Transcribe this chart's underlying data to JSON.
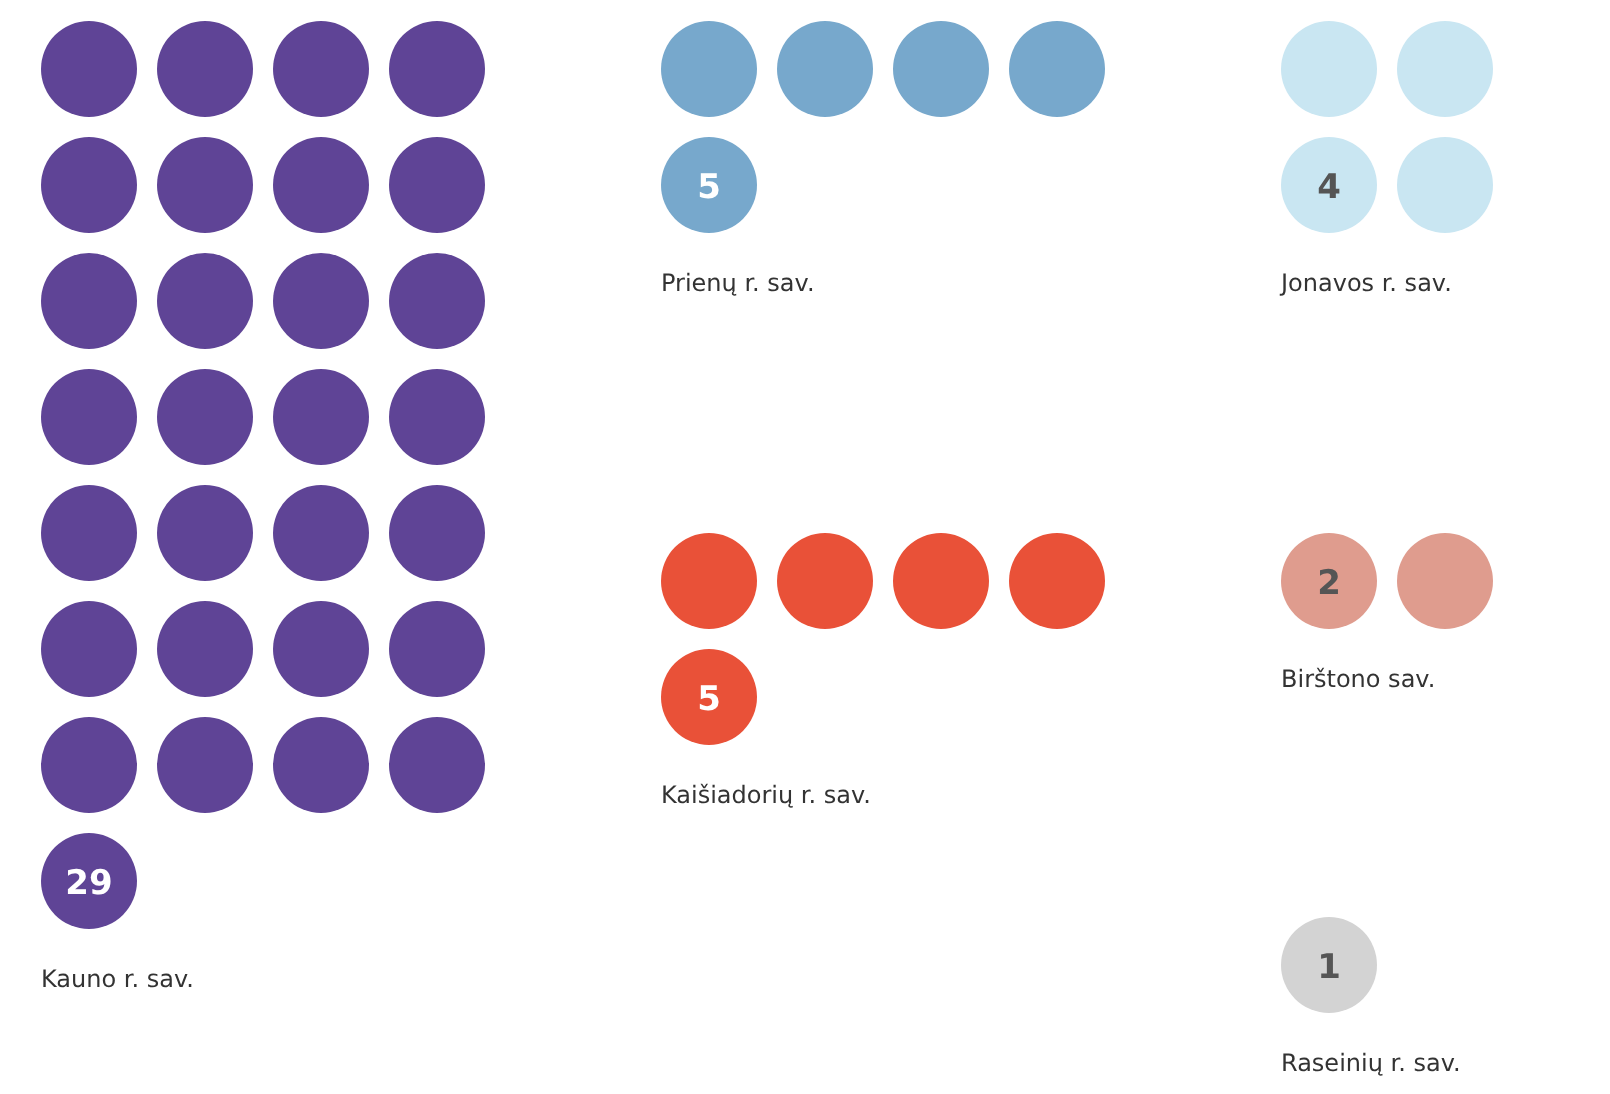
{
  "chart_data": {
    "type": "other",
    "categories": [
      "Kauno r. sav.",
      "Prienų r. sav.",
      "Jonavos r. sav.",
      "Kaišiadorių r. sav.",
      "Birštono sav.",
      "Raseinių r. sav."
    ],
    "values": [
      29,
      5,
      4,
      5,
      2,
      1
    ],
    "colors": [
      "#5f4496",
      "#77a8cc",
      "#c9e6f2",
      "#e95138",
      "#df9c8e",
      "#d3d3d3"
    ],
    "data_labels": true
  }
}
